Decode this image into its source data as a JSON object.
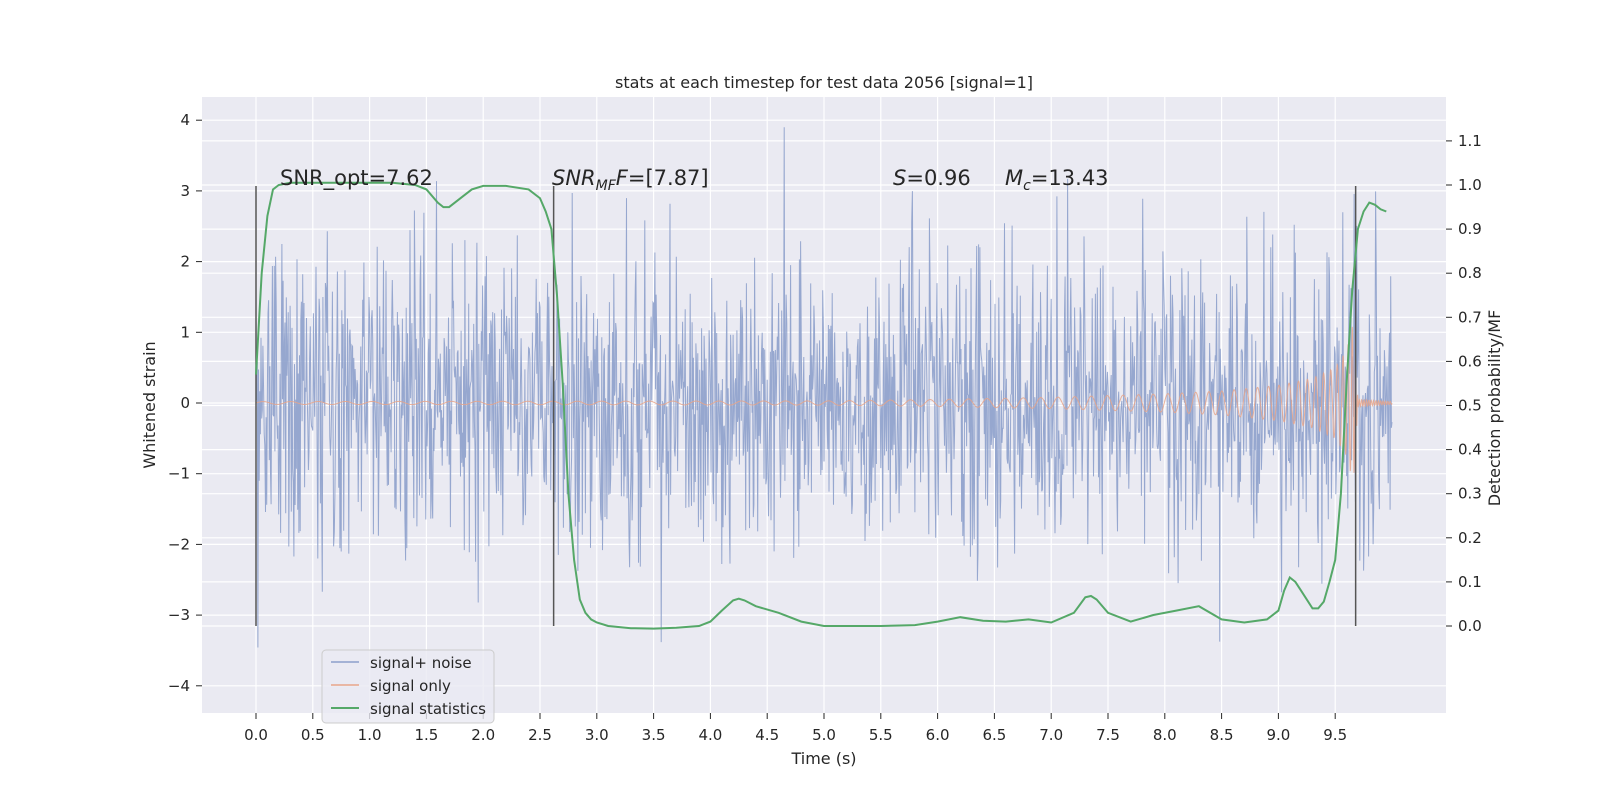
{
  "chart_data": {
    "type": "line",
    "title": "stats at each timestep for test data 2056 [signal=1]",
    "xlabel": "Time (s)",
    "ylabel": "Whitened strain",
    "ylabel_right": "Detection probability/MF",
    "xlim": [
      -0.45,
      10.5
    ],
    "ylim": [
      -4.4,
      4.35
    ],
    "ylim_right": [
      -0.2,
      1.2
    ],
    "x_ticks": [
      "0.0",
      "0.5",
      "1.0",
      "1.5",
      "2.0",
      "2.5",
      "3.0",
      "3.5",
      "4.0",
      "4.5",
      "5.0",
      "5.5",
      "6.0",
      "6.5",
      "7.0",
      "7.5",
      "8.0",
      "8.5",
      "9.0",
      "9.5"
    ],
    "y_ticks": [
      "4",
      "3",
      "2",
      "1",
      "0",
      "−1",
      "−2",
      "−3",
      "−4"
    ],
    "y_ticks_right": [
      "0.0",
      "0.1",
      "0.2",
      "0.3",
      "0.4",
      "0.5",
      "0.6",
      "0.7",
      "0.8",
      "0.9",
      "1.0",
      "1.1"
    ],
    "grid": true,
    "legend_position": "lower-left",
    "annotations": {
      "snr_opt": "SNR_opt=7.62",
      "snr_mf_base": "SNR",
      "snr_mf_sub": "MF",
      "snr_mf_rest": "=[7.87]",
      "s_sym": "S",
      "s_rest": "=0.96",
      "mc_sym": "M",
      "mc_sub": "c",
      "mc_rest": "=13.43"
    },
    "vertical_markers": [
      0.0,
      2.62,
      9.68
    ],
    "series": [
      {
        "name": "signal+ noise",
        "color": "#8da0cb",
        "description_values": "noise band roughly between -3.5 and 3.9",
        "x_range": [
          0.0,
          10.0
        ]
      },
      {
        "name": "signal only",
        "color": "#e8a58a",
        "envelope": {
          "x": [
            0.0,
            5.0,
            6.0,
            7.0,
            8.0,
            8.5,
            9.0,
            9.3,
            9.5,
            9.6,
            9.66,
            9.7,
            10.0
          ],
          "amplitude": [
            0.02,
            0.03,
            0.05,
            0.08,
            0.13,
            0.17,
            0.25,
            0.35,
            0.5,
            0.75,
            1.15,
            0.05,
            0.02
          ]
        }
      },
      {
        "name": "signal statistics",
        "color": "#55a868",
        "axis": "right",
        "x": [
          0.0,
          0.05,
          0.1,
          0.15,
          0.2,
          0.3,
          0.5,
          0.8,
          1.0,
          1.2,
          1.4,
          1.5,
          1.6,
          1.65,
          1.7,
          1.8,
          1.9,
          2.0,
          2.2,
          2.4,
          2.5,
          2.55,
          2.6,
          2.65,
          2.7,
          2.75,
          2.8,
          2.85,
          2.9,
          2.95,
          3.0,
          3.1,
          3.3,
          3.5,
          3.7,
          3.9,
          4.0,
          4.1,
          4.2,
          4.25,
          4.3,
          4.4,
          4.6,
          4.8,
          5.0,
          5.2,
          5.5,
          5.8,
          6.0,
          6.2,
          6.4,
          6.6,
          6.8,
          7.0,
          7.2,
          7.3,
          7.35,
          7.4,
          7.5,
          7.7,
          7.9,
          8.1,
          8.3,
          8.5,
          8.7,
          8.9,
          9.0,
          9.05,
          9.1,
          9.15,
          9.2,
          9.3,
          9.35,
          9.4,
          9.45,
          9.5,
          9.55,
          9.6,
          9.65,
          9.7,
          9.75,
          9.8,
          9.85,
          9.9,
          9.95
        ],
        "values": [
          0.57,
          0.8,
          0.93,
          0.99,
          1.0,
          1.005,
          1.005,
          1.005,
          1.005,
          1.005,
          1.0,
          0.99,
          0.96,
          0.95,
          0.95,
          0.97,
          0.99,
          0.998,
          0.998,
          0.99,
          0.97,
          0.94,
          0.9,
          0.75,
          0.55,
          0.3,
          0.15,
          0.06,
          0.03,
          0.015,
          0.008,
          0.0,
          -0.005,
          -0.006,
          -0.004,
          0.0,
          0.01,
          0.035,
          0.058,
          0.062,
          0.058,
          0.045,
          0.03,
          0.01,
          0.0,
          0.0,
          0.0,
          0.002,
          0.01,
          0.02,
          0.012,
          0.01,
          0.015,
          0.008,
          0.03,
          0.065,
          0.068,
          0.06,
          0.03,
          0.01,
          0.025,
          0.035,
          0.045,
          0.015,
          0.008,
          0.015,
          0.035,
          0.08,
          0.11,
          0.1,
          0.08,
          0.04,
          0.04,
          0.055,
          0.1,
          0.15,
          0.3,
          0.55,
          0.76,
          0.9,
          0.94,
          0.96,
          0.955,
          0.945,
          0.94
        ]
      }
    ]
  }
}
